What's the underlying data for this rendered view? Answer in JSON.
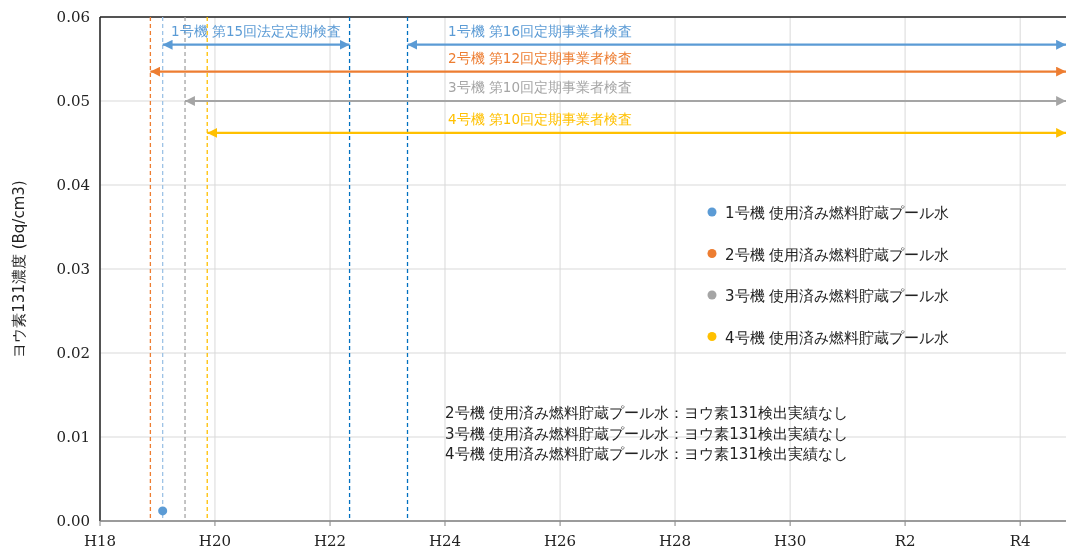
{
  "chart_data": {
    "type": "scatter",
    "ylabel": "ヨウ素131濃度 (Bq/cm3)",
    "xlim": [
      "2006-01-01",
      "2022-10-19"
    ],
    "xticks": [
      {
        "value": "2006-01-01",
        "label": "H18"
      },
      {
        "value": "2008-01-01",
        "label": "H20"
      },
      {
        "value": "2010-01-01",
        "label": "H22"
      },
      {
        "value": "2012-01-01",
        "label": "H24"
      },
      {
        "value": "2014-01-01",
        "label": "H26"
      },
      {
        "value": "2016-01-01",
        "label": "H28"
      },
      {
        "value": "2018-01-01",
        "label": "H30"
      },
      {
        "value": "2020-01-01",
        "label": "R2"
      },
      {
        "value": "2022-01-01",
        "label": "R4"
      }
    ],
    "ylim": [
      0,
      0.06
    ],
    "yticks": [
      {
        "value": 0,
        "label": "0.00"
      },
      0.01,
      0.02,
      0.03,
      0.04,
      0.05,
      0.06
    ],
    "grid": true,
    "legend": "right",
    "series": [
      {
        "name": "1号機 使用済み燃料貯蔵プール水",
        "color": "#5b9bd5",
        "marker": "circle",
        "x": [
          "2007-02-03"
        ],
        "values": [
          0.0012
        ]
      },
      {
        "name": "2号機 使用済み燃料貯蔵プール水",
        "color": "#ed7d31",
        "marker": "circle"
      },
      {
        "name": "3号機 使用済み燃料貯蔵プール水",
        "color": "#a5a5a5",
        "marker": "circle"
      },
      {
        "name": "4号機 使用済み燃料貯蔵プール水",
        "color": "#ffc000",
        "marker": "circle"
      },
      {
        "type": "line",
        "name": "1号機 第15回法定定期検査",
        "color": "#5b9bd5",
        "x": [
          "2007-02-03",
          "2010-05-05"
        ],
        "values": [
          0.0567,
          0.0567
        ]
      },
      {
        "type": "line",
        "name": "1号機 第16回定期事業者検査",
        "color": "#5b9bd5",
        "x": [
          "2011-05-08",
          "2022-10-19"
        ],
        "values": [
          0.0567,
          0.0567
        ]
      },
      {
        "type": "line",
        "name": "2号機 第12回定期事業者検査",
        "color": "#ed7d31",
        "x": [
          "2006-11-17",
          "2022-10-19"
        ],
        "values": [
          0.0535,
          0.0535
        ]
      },
      {
        "type": "line",
        "name": "3号機 第10回定期事業者検査",
        "color": "#a5a5a5",
        "x": [
          "2007-06-25",
          "2022-10-19"
        ],
        "values": [
          0.05,
          0.05
        ]
      },
      {
        "type": "line",
        "name": "4号機 第10回定期事業者検査",
        "color": "#ffc000",
        "x": [
          "2007-11-13",
          "2022-10-19"
        ],
        "values": [
          0.0462,
          0.0462
        ]
      }
    ],
    "ref_lines": [
      {
        "axis": "x",
        "value": "2006-11-17",
        "color": "#ed7d31",
        "line_style": "dashed"
      },
      {
        "axis": "x",
        "value": "2007-02-03",
        "color": "#9dc3e6",
        "line_style": "dashed"
      },
      {
        "axis": "x",
        "value": "2007-06-25",
        "color": "#a5a5a5",
        "line_style": "dashed"
      },
      {
        "axis": "x",
        "value": "2007-11-13",
        "color": "#ffc000",
        "line_style": "dashed"
      },
      {
        "axis": "x",
        "value": "2010-05-05",
        "color": "#0070c0",
        "line_style": "dashed"
      },
      {
        "axis": "x",
        "value": "2011-05-08",
        "color": "#0070c0",
        "line_style": "dashed"
      }
    ],
    "annotations": [
      "2号機 使用済み燃料貯蔵プール水：ヨウ素131検出実績なし",
      "3号機 使用済み燃料貯蔵プール水：ヨウ素131検出実績なし",
      "4号機 使用済み燃料貯蔵プール水：ヨウ素131検出実績なし"
    ]
  }
}
